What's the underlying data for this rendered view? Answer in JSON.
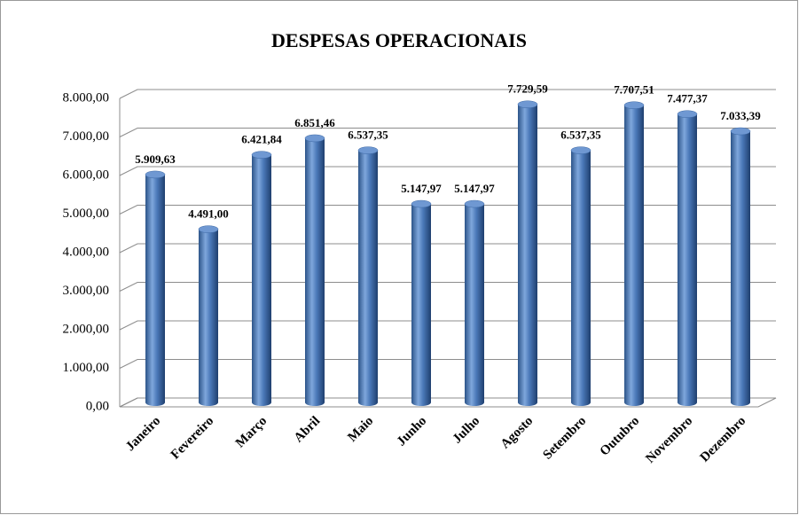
{
  "chart_data": {
    "type": "bar",
    "title": "DESPESAS OPERACIONAIS",
    "categories": [
      "Janeiro",
      "Fevereiro",
      "Março",
      "Abril",
      "Maio",
      "Junho",
      "Julho",
      "Agosto",
      "Setembro",
      "Outubro",
      "Novembro",
      "Dezembro"
    ],
    "values": [
      5909.63,
      4491.0,
      6421.84,
      6851.46,
      6537.35,
      5147.97,
      5147.97,
      7729.59,
      6537.35,
      7707.51,
      7477.37,
      7033.39
    ],
    "value_labels": [
      "5.909,63",
      "4.491,00",
      "6.421,84",
      "6.851,46",
      "6.537,35",
      "5.147,97",
      "5.147,97",
      "7.729,59",
      "6.537,35",
      "7.707,51",
      "7.477,37",
      "7.033,39"
    ],
    "color": "#4f81bd",
    "ylim": [
      0,
      8000
    ],
    "yticks": [
      {
        "value": 0,
        "label": "0,00"
      },
      {
        "value": 1000,
        "label": "1.000,00"
      },
      {
        "value": 2000,
        "label": "2.000,00"
      },
      {
        "value": 3000,
        "label": "3.000,00"
      },
      {
        "value": 4000,
        "label": "4.000,00"
      },
      {
        "value": 5000,
        "label": "5.000,00"
      },
      {
        "value": 6000,
        "label": "6.000,00"
      },
      {
        "value": 7000,
        "label": "7.000,00"
      },
      {
        "value": 8000,
        "label": "8.000,00"
      }
    ],
    "grid": true
  }
}
